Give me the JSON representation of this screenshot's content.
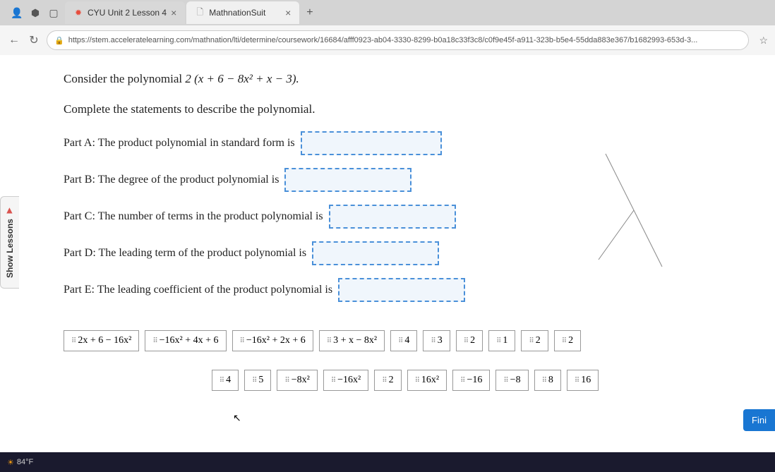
{
  "browser": {
    "tabs": [
      {
        "title": "CYU Unit 2 Lesson 4",
        "favicon_color": "#e74c3c",
        "active": false
      },
      {
        "title": "MathnationSuit",
        "favicon_color": "#888",
        "active": true
      }
    ],
    "url": "https://stem.acceleratelearning.com/mathnation/lti/determine/coursework/16684/afff0923-ab04-3330-8299-b0a18c33f3c8/c0f9e45f-a911-323b-b5e4-55dda883e367/b1682993-653d-3...",
    "back_icon": "←",
    "reload_icon": "↻",
    "lock_icon": "🔒",
    "star_icon": "☆",
    "new_tab": "+",
    "close": "×"
  },
  "sidebar": {
    "show_lessons": "Show Lessons",
    "arrow": "▶"
  },
  "question": {
    "intro": "Consider the polynomial ",
    "expression": "2 (x + 6 − 8x² + x − 3).",
    "instruction": "Complete the statements to describe the polynomial.",
    "parts": {
      "a": "Part A: The product polynomial in standard form is",
      "b": "Part B: The degree of the product polynomial is",
      "c": "Part C: The number of terms in the product polynomial is",
      "d": "Part D: The leading term of the product polynomial is",
      "e": "Part E: The leading coefficient of the product polynomial is"
    }
  },
  "options": {
    "row1": [
      "2x + 6 − 16x²",
      "−16x² + 4x + 6",
      "−16x² + 2x + 6",
      "3 + x − 8x²",
      "4",
      "3",
      "2",
      "1",
      "2",
      "2"
    ],
    "row2": [
      "4",
      "5",
      "−8x²",
      "−16x²",
      "2",
      "16x²",
      "−16",
      "−8",
      "8",
      "16"
    ]
  },
  "taskbar": {
    "temp": "84°F"
  },
  "finish": "Fini",
  "colors": {
    "drop_border": "#4a90d9",
    "drop_bg": "#f0f6fc",
    "finish_bg": "#1976d2"
  }
}
